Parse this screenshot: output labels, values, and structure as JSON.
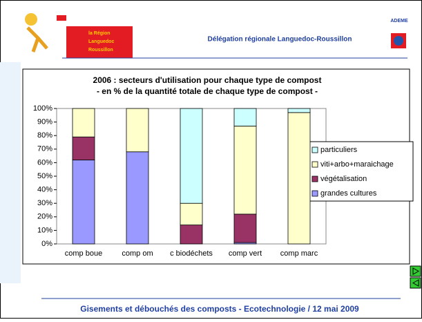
{
  "header": {
    "region_logo": [
      "la Région",
      "Languedoc",
      "Roussillon"
    ],
    "delegation": "Délégation régionale Languedoc-Roussillon",
    "ademe": "ADEME"
  },
  "footer": "Gisements et débouchés des composts -  Ecotechnologie  /  12 mai 2009",
  "chart_data": {
    "type": "stacked_bar",
    "title": [
      "2006 : secteurs d'utilisation pour chaque type de compost",
      "- en % de la quantité totale de chaque type de compost -"
    ],
    "categories": [
      "comp  boue",
      "comp om",
      "c biodéchets",
      "comp vert",
      "comp marc"
    ],
    "series": [
      {
        "name": "grandes cultures",
        "color": "#9999ff",
        "values": [
          62,
          68,
          0,
          1,
          0
        ]
      },
      {
        "name": "végétalisation",
        "color": "#993366",
        "values": [
          17,
          0,
          14,
          21,
          0
        ]
      },
      {
        "name": "viti+arbo+maraichage",
        "color": "#ffffcc",
        "values": [
          21,
          32,
          16,
          65,
          97
        ]
      },
      {
        "name": "particuliers",
        "color": "#ccffff",
        "values": [
          0,
          0,
          70,
          13,
          3
        ]
      }
    ],
    "ylim": [
      0,
      100
    ],
    "yticks": [
      {
        "value": 0,
        "label": "0%"
      },
      {
        "value": 10,
        "label": "10%"
      },
      {
        "value": 20,
        "label": "20%"
      },
      {
        "value": 30,
        "label": "30%"
      },
      {
        "value": 40,
        "label": "40%"
      },
      {
        "value": 50,
        "label": "50%"
      },
      {
        "value": 60,
        "label": "60%"
      },
      {
        "value": 70,
        "label": "70%"
      },
      {
        "value": 80,
        "label": "80%"
      },
      {
        "value": 90,
        "label": "90%"
      },
      {
        "value": 100,
        "label": "100%"
      }
    ],
    "legend": "right"
  }
}
